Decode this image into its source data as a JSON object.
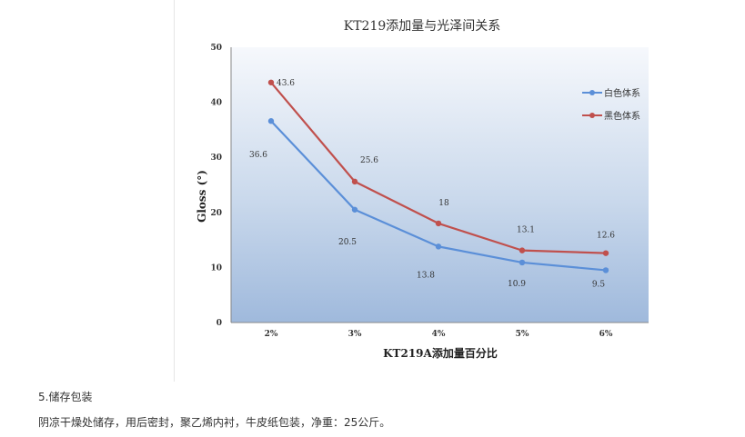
{
  "chart_data": {
    "type": "line",
    "title": "KT219添加量与光泽间关系",
    "xlabel": "KT219A添加量百分比",
    "ylabel": "Gloss (°)",
    "categories": [
      "2%",
      "3%",
      "4%",
      "5%",
      "6%"
    ],
    "ylim": [
      0,
      50
    ],
    "yticks": [
      0,
      10,
      20,
      30,
      40,
      50
    ],
    "grid": false,
    "legend_position": "right",
    "background": "gradient light-blue to steel-blue",
    "series": [
      {
        "name": "白色体系",
        "color": "#5B8FD8",
        "values": [
          36.6,
          20.5,
          13.8,
          10.9,
          9.5
        ],
        "labels": [
          "36.6",
          "20.5",
          "13.8",
          "10.9",
          "9.5"
        ]
      },
      {
        "name": "黑色体系",
        "color": "#C0504D",
        "values": [
          43.6,
          25.6,
          18,
          13.1,
          12.6
        ],
        "labels": [
          "43.6",
          "25.6",
          "18",
          "13.1",
          "12.6"
        ]
      }
    ]
  },
  "section": {
    "heading": "5.储存包装",
    "body": "阴凉干燥处储存，用后密封，聚乙烯内衬，牛皮纸包装，净重：25公斤。"
  }
}
